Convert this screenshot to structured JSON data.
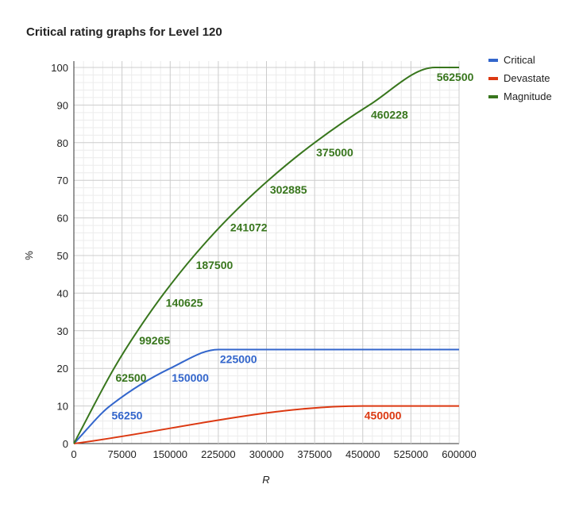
{
  "chart_data": {
    "type": "line",
    "title": "Critical rating graphs for Level 120",
    "x_label": "R",
    "y_label": "%",
    "xlim": [
      0,
      600000
    ],
    "xticks": [
      0,
      75000,
      150000,
      225000,
      300000,
      375000,
      450000,
      525000,
      600000
    ],
    "ylim": [
      0,
      100
    ],
    "yticks": [
      0,
      10,
      20,
      30,
      40,
      50,
      60,
      70,
      80,
      90,
      100
    ],
    "grid": true,
    "legend": "right",
    "series": [
      {
        "name": "Critical",
        "color": "#3366cc",
        "x": [
          0,
          56250,
          150000,
          225000,
          600000
        ],
        "values": [
          0,
          10,
          20,
          25,
          25
        ]
      },
      {
        "name": "Devastate",
        "color": "#dc3912",
        "x": [
          0,
          450000,
          600000
        ],
        "values": [
          0,
          10,
          10
        ]
      },
      {
        "name": "Magnitude",
        "color": "#38761d",
        "x": [
          0,
          62500,
          99265,
          140625,
          187500,
          241072,
          302885,
          375000,
          460228,
          562500,
          600000
        ],
        "values": [
          0,
          20,
          30,
          40,
          50,
          60,
          70,
          80,
          90,
          100,
          100
        ]
      }
    ]
  }
}
